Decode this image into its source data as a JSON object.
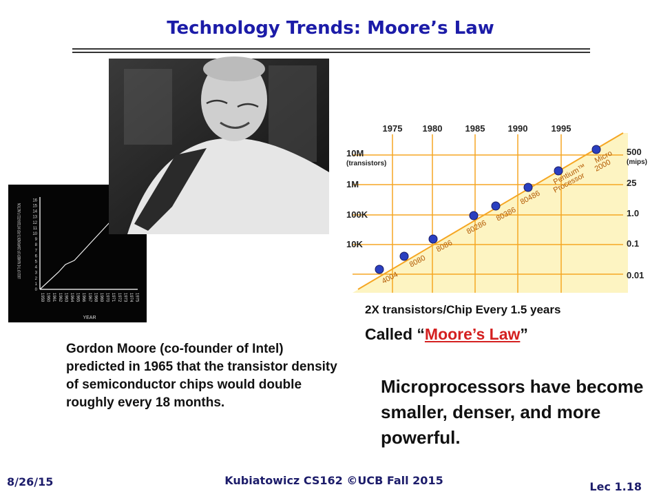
{
  "header": {
    "title": "Technology Trends: Moore’s Law"
  },
  "moore_chart": {
    "years": [
      "1975",
      "1980",
      "1985",
      "1990",
      "1995"
    ],
    "left_labels": [
      "10M",
      "(transistors)",
      "1M",
      "100K",
      "10K"
    ],
    "right_labels": [
      "500",
      "(mips)",
      "25",
      "1.0",
      "0.1",
      "0.01"
    ],
    "chips": [
      {
        "lines": [
          "4004"
        ]
      },
      {
        "lines": [
          "8080"
        ]
      },
      {
        "lines": [
          "8086"
        ]
      },
      {
        "lines": [
          "80286"
        ]
      },
      {
        "lines": [
          "80386"
        ]
      },
      {
        "lines": [
          "80486"
        ]
      },
      {
        "lines": [
          "Pentium™",
          "Processor"
        ]
      },
      {
        "lines": [
          "Micro",
          "2000"
        ]
      }
    ]
  },
  "original_graph": {
    "y_axis_label": "LOG2 OF THE NUMBER OF COMPONENTS PER INTEGRATED FUNCTION",
    "x_axis_label": "YEAR",
    "yticks": [
      "0",
      "1",
      "2",
      "3",
      "4",
      "5",
      "6",
      "7",
      "8",
      "9",
      "10",
      "11",
      "12",
      "13",
      "14",
      "15",
      "16"
    ],
    "xticks": [
      "1959",
      "1960",
      "1961",
      "1962",
      "1963",
      "1964",
      "1965",
      "1966",
      "1967",
      "1968",
      "1969",
      "1970",
      "1971",
      "1972",
      "1973",
      "1974",
      "1975"
    ]
  },
  "caption": {
    "line1": "2X transistors/Chip Every 1.5 years",
    "called_prefix": "Called “",
    "link": "Moore’s Law",
    "called_suffix": "”"
  },
  "description": "Gordon Moore (co-founder of Intel) predicted in 1965 that the transistor density of semiconductor chips would double roughly every 18 months.",
  "conclusion": "Microprocessors have become smaller, denser, and more powerful.",
  "footer": {
    "date": "8/26/15",
    "course": "Kubiatowicz CS162 ©UCB Fall 2015",
    "lecture": "Lec 1.18"
  }
}
